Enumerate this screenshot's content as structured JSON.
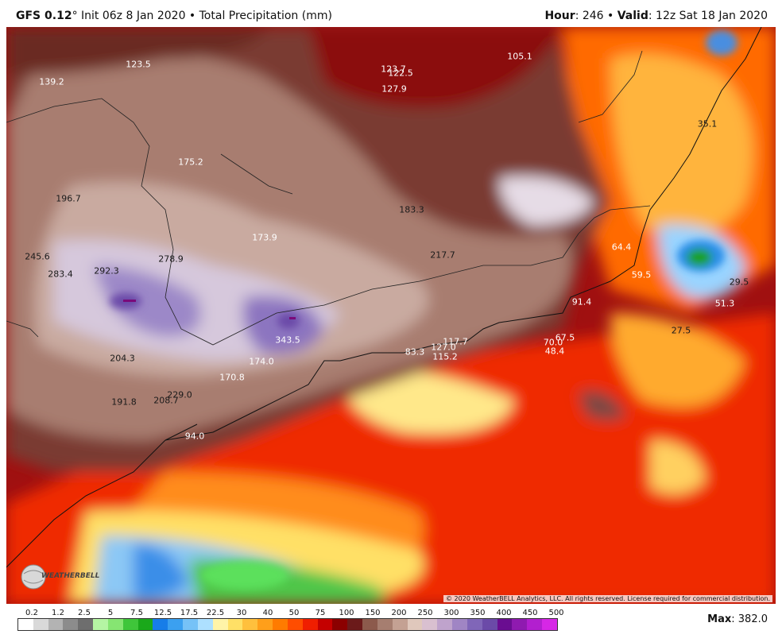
{
  "header": {
    "model": "GFS 0.12",
    "degree": "°",
    "init": " Init 06z 8 Jan 2020 • Total Precipitation (mm)",
    "hour_label": "Hour",
    "hour_value": ": 246 • ",
    "valid_label": "Valid",
    "valid_value": ": 12z Sat 18 Jan 2020"
  },
  "map": {
    "copyright": "© 2020 WeatherBELL Analytics, LLC. All rights reserved. License required for commercial distribution.",
    "logo_text": "WEATHERBELL",
    "value_labels": [
      {
        "text": "123.5",
        "tone": "light"
      },
      {
        "text": "139.2",
        "tone": "light"
      },
      {
        "text": "123.7",
        "tone": "light"
      },
      {
        "text": "122.5",
        "tone": "light"
      },
      {
        "text": "127.9",
        "tone": "light"
      },
      {
        "text": "105.1",
        "tone": "light"
      },
      {
        "text": "35.1",
        "tone": "dark"
      },
      {
        "text": "175.2",
        "tone": "light"
      },
      {
        "text": "196.7",
        "tone": "dark"
      },
      {
        "text": "183.3",
        "tone": "dark"
      },
      {
        "text": "173.9",
        "tone": "light"
      },
      {
        "text": "245.6",
        "tone": "dark"
      },
      {
        "text": "283.4",
        "tone": "dark"
      },
      {
        "text": "292.3",
        "tone": "dark"
      },
      {
        "text": "278.9",
        "tone": "dark"
      },
      {
        "text": "217.7",
        "tone": "dark"
      },
      {
        "text": "64.4",
        "tone": "light"
      },
      {
        "text": "59.5",
        "tone": "light"
      },
      {
        "text": "29.5",
        "tone": "dark"
      },
      {
        "text": "51.3",
        "tone": "light"
      },
      {
        "text": "91.4",
        "tone": "light"
      },
      {
        "text": "27.5",
        "tone": "dark"
      },
      {
        "text": "343.5",
        "tone": "light"
      },
      {
        "text": "117.7",
        "tone": "light"
      },
      {
        "text": "127.0",
        "tone": "light"
      },
      {
        "text": "115.2",
        "tone": "light"
      },
      {
        "text": "83.3",
        "tone": "light"
      },
      {
        "text": "70.0",
        "tone": "light"
      },
      {
        "text": "67.5",
        "tone": "light"
      },
      {
        "text": "48.4",
        "tone": "light"
      },
      {
        "text": "204.3",
        "tone": "dark"
      },
      {
        "text": "174.0",
        "tone": "light"
      },
      {
        "text": "170.8",
        "tone": "light"
      },
      {
        "text": "191.8",
        "tone": "dark"
      },
      {
        "text": "208.7",
        "tone": "dark"
      },
      {
        "text": "229.0",
        "tone": "dark"
      },
      {
        "text": "94.0",
        "tone": "light"
      }
    ]
  },
  "legend": {
    "ticks": [
      "0.2",
      "1.2",
      "2.5",
      "5",
      "7.5",
      "12.5",
      "17.5",
      "22.5",
      "30",
      "40",
      "50",
      "75",
      "100",
      "150",
      "200",
      "250",
      "300",
      "350",
      "400",
      "450",
      "500"
    ],
    "colors": [
      "#ffffff",
      "#d9d9d9",
      "#b3b3b3",
      "#8c8c8c",
      "#6e6e6e",
      "#b5f5a3",
      "#86e572",
      "#3fc63a",
      "#1aa81a",
      "#177de8",
      "#3ba0f0",
      "#76c2f7",
      "#ade0ff",
      "#fff4a8",
      "#ffe066",
      "#ffc03d",
      "#ff9f1a",
      "#ff7b00",
      "#ff4d00",
      "#f01e00",
      "#c40000",
      "#8b0000",
      "#6b1a1a",
      "#8c5a4c",
      "#a67e70",
      "#c4a193",
      "#e0c8bc",
      "#d9c0d0",
      "#bfa3cc",
      "#a085c4",
      "#8066b8",
      "#6b4aa8",
      "#6a0d91",
      "#8f1ab0",
      "#b21fcf",
      "#d627e6"
    ],
    "max_label": "Max",
    "max_value": ": 382.0"
  }
}
